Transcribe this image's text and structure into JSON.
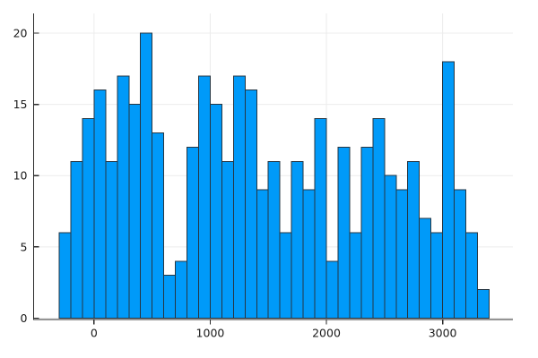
{
  "chart_data": {
    "type": "bar",
    "subtype": "histogram",
    "title": "",
    "xlabel": "",
    "ylabel": "",
    "legend": "none",
    "grid": true,
    "bin_start": -300,
    "bin_width": 100,
    "bin_edges": [
      -300,
      -200,
      -100,
      0,
      100,
      200,
      300,
      400,
      500,
      600,
      700,
      800,
      900,
      1000,
      1100,
      1200,
      1300,
      1400,
      1500,
      1600,
      1700,
      1800,
      1900,
      2000,
      2100,
      2200,
      2300,
      2400,
      2500,
      2600,
      2700,
      2800,
      2900,
      3000,
      3100,
      3200,
      3300,
      3400
    ],
    "values": [
      6,
      11,
      14,
      16,
      11,
      17,
      15,
      20,
      13,
      3,
      4,
      12,
      17,
      15,
      11,
      17,
      16,
      9,
      11,
      6,
      11,
      9,
      14,
      4,
      12,
      6,
      12,
      14,
      10,
      9,
      11,
      7,
      6,
      18,
      9,
      6,
      2
    ],
    "x_ticks": [
      0,
      1000,
      2000,
      3000
    ],
    "x_tick_labels": [
      "0",
      "1000",
      "2000",
      "3000"
    ],
    "y_ticks": [
      0,
      5,
      10,
      15,
      20
    ],
    "y_tick_labels": [
      "0",
      "5",
      "10",
      "15",
      "20"
    ],
    "xlim": [
      -520,
      3605
    ],
    "ylim": [
      0,
      21.38
    ],
    "colors": {
      "bar_fill": "#009af9",
      "bar_stroke": "#263642",
      "grid_color": "#ececec",
      "axis_color": "#2a2a2a",
      "tick_label_color": "#1a1a1a",
      "background": "#ffffff"
    }
  }
}
